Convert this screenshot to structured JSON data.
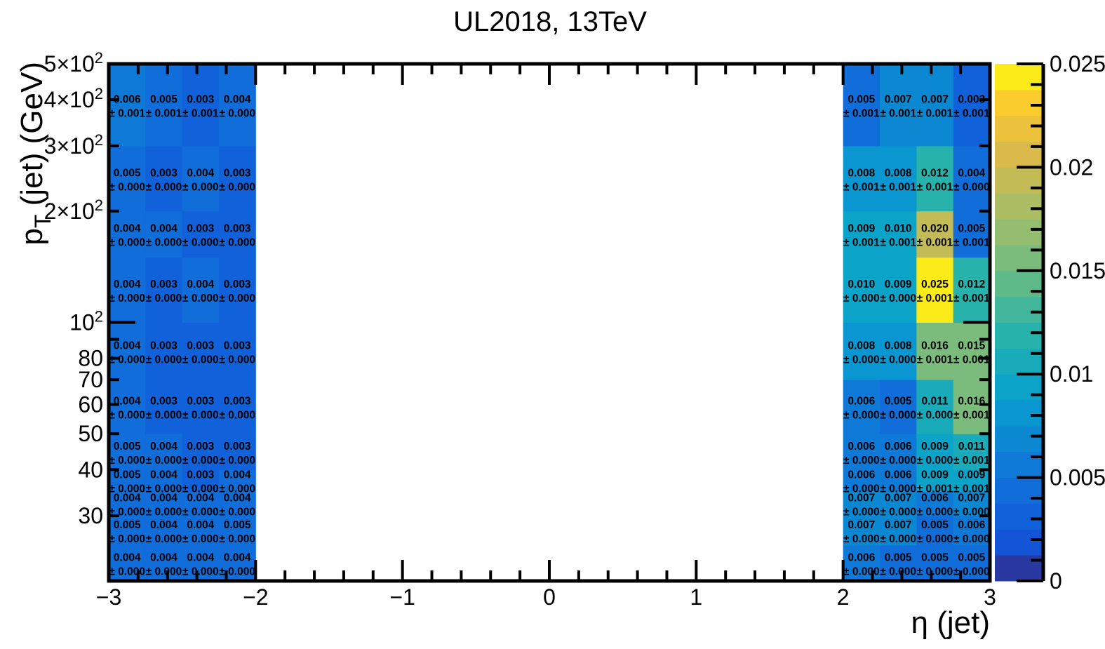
{
  "chart_data": {
    "type": "heatmap",
    "title": "UL2018, 13TeV",
    "xlabel": "η (jet)",
    "ylabel": "p_T (jet) (GeV)",
    "x_edges": [
      -3,
      -2.75,
      -2.5,
      -2.25,
      -2,
      2,
      2.25,
      2.5,
      2.75,
      3
    ],
    "y_edges": [
      20,
      25,
      30,
      35,
      40,
      50,
      70,
      100,
      150,
      200,
      300,
      500
    ],
    "xlim": [
      -3,
      3
    ],
    "ylim": [
      20,
      500
    ],
    "y_scale": "log",
    "zlim": [
      0,
      0.025
    ],
    "colormap": "viridis-like",
    "grid": false,
    "x_ticks": [
      {
        "value": -3,
        "label": "−3"
      },
      {
        "value": -2,
        "label": "−2"
      },
      {
        "value": -1,
        "label": "−1"
      },
      {
        "value": 0,
        "label": "0"
      },
      {
        "value": 1,
        "label": "1"
      },
      {
        "value": 2,
        "label": "2"
      },
      {
        "value": 3,
        "label": "3"
      }
    ],
    "y_ticks": [
      {
        "value": 30,
        "label": "30"
      },
      {
        "value": 40,
        "label": "40"
      },
      {
        "value": 50,
        "label": "50"
      },
      {
        "value": 60,
        "label": "60"
      },
      {
        "value": 70,
        "label": "70"
      },
      {
        "value": 80,
        "label": "80"
      },
      {
        "value": 100,
        "label": "10²"
      },
      {
        "value": 200,
        "label": "2×10²"
      },
      {
        "value": 300,
        "label": "3×10²"
      },
      {
        "value": 400,
        "label": "4×10²"
      },
      {
        "value": 500,
        "label": "5×10²"
      }
    ],
    "z_ticks": [
      {
        "value": 0,
        "label": "0"
      },
      {
        "value": 0.005,
        "label": "0.005"
      },
      {
        "value": 0.01,
        "label": "0.01"
      },
      {
        "value": 0.015,
        "label": "0.015"
      },
      {
        "value": 0.02,
        "label": "0.02"
      },
      {
        "value": 0.025,
        "label": "0.025"
      }
    ],
    "values": [
      [
        0.004,
        0.004,
        0.004,
        0.004,
        null,
        0.006,
        0.005,
        0.005,
        0.005
      ],
      [
        0.005,
        0.004,
        0.004,
        0.005,
        null,
        0.007,
        0.007,
        0.005,
        0.006
      ],
      [
        0.004,
        0.004,
        0.004,
        0.004,
        null,
        0.007,
        0.007,
        0.006,
        0.007
      ],
      [
        0.005,
        0.004,
        0.003,
        0.004,
        null,
        0.006,
        0.006,
        0.009,
        0.009
      ],
      [
        0.005,
        0.004,
        0.003,
        0.003,
        null,
        0.006,
        0.006,
        0.009,
        0.011
      ],
      [
        0.004,
        0.003,
        0.003,
        0.003,
        null,
        0.006,
        0.005,
        0.011,
        0.016
      ],
      [
        0.004,
        0.003,
        0.003,
        0.003,
        null,
        0.008,
        0.008,
        0.016,
        0.015
      ],
      [
        0.004,
        0.003,
        0.004,
        0.003,
        null,
        0.01,
        0.009,
        0.025,
        0.012
      ],
      [
        0.004,
        0.004,
        0.003,
        0.003,
        null,
        0.009,
        0.01,
        0.02,
        0.005
      ],
      [
        0.005,
        0.003,
        0.004,
        0.003,
        null,
        0.008,
        0.008,
        0.012,
        0.004
      ],
      [
        0.006,
        0.005,
        0.003,
        0.004,
        null,
        0.005,
        0.007,
        0.007,
        0.003
      ]
    ],
    "errors": [
      [
        0.0,
        0.0,
        0.0,
        0.0,
        null,
        0.0,
        0.0,
        0.0,
        0.0
      ],
      [
        0.0,
        0.0,
        0.0,
        0.0,
        null,
        0.0,
        0.0,
        0.0,
        0.0
      ],
      [
        0.0,
        0.0,
        0.0,
        0.0,
        null,
        0.0,
        0.0,
        0.0,
        0.0
      ],
      [
        0.0,
        0.0,
        0.0,
        0.0,
        null,
        0.0,
        0.0,
        0.001,
        0.001
      ],
      [
        0.0,
        0.0,
        0.0,
        0.0,
        null,
        0.0,
        0.0,
        0.0,
        0.001
      ],
      [
        0.0,
        0.0,
        0.0,
        0.0,
        null,
        0.0,
        0.0,
        0.0,
        0.001
      ],
      [
        0.0,
        0.0,
        0.0,
        0.0,
        null,
        0.0,
        0.0,
        0.001,
        0.001
      ],
      [
        0.0,
        0.0,
        0.0,
        0.0,
        null,
        0.0,
        0.0,
        0.001,
        0.001
      ],
      [
        0.0,
        0.0,
        0.0,
        0.0,
        null,
        0.001,
        0.001,
        0.001,
        0.001
      ],
      [
        0.0,
        0.0,
        0.0,
        0.0,
        null,
        0.001,
        0.001,
        0.001,
        0.0
      ],
      [
        0.001,
        0.001,
        0.001,
        0.0,
        null,
        0.001,
        0.001,
        0.001,
        0.001
      ]
    ]
  }
}
